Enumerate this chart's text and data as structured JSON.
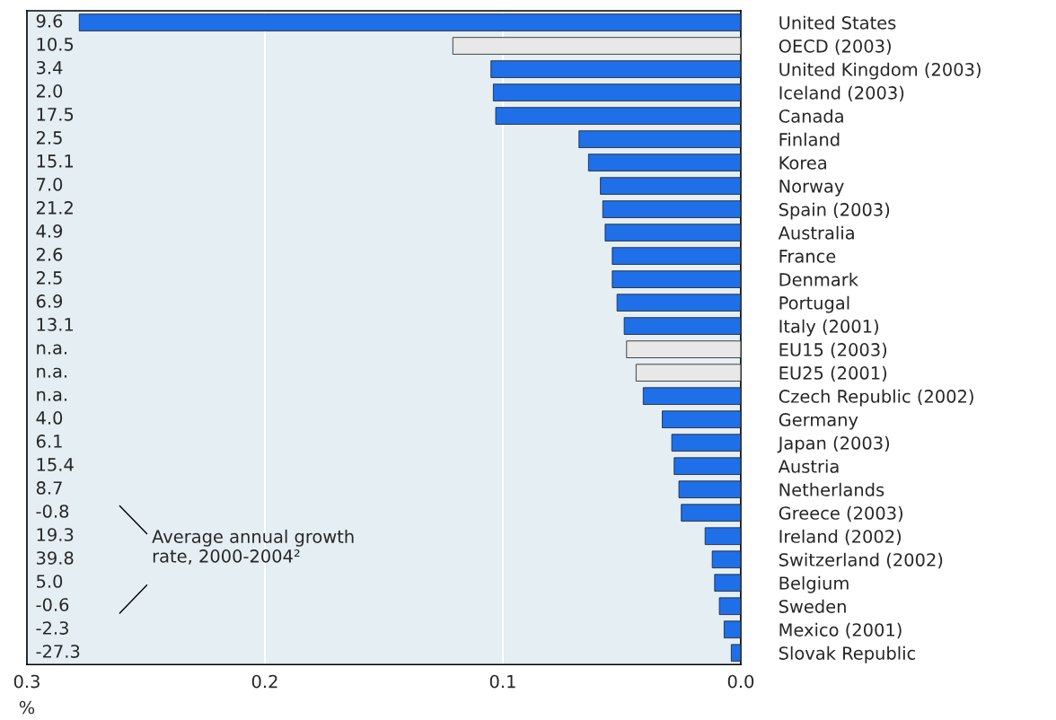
{
  "chart_data": {
    "type": "bar",
    "orientation": "horizontal",
    "xlabel": "%",
    "categories": [
      "United States",
      "OECD (2003)",
      "United Kingdom (2003)",
      "Iceland (2003)",
      "Canada",
      "Finland",
      "Korea",
      "Norway",
      "Spain (2003)",
      "Australia",
      "France",
      "Denmark",
      "Portugal",
      "Italy (2001)",
      "EU15 (2003)",
      "EU25 (2001)",
      "Czech Republic (2002)",
      "Germany",
      "Japan (2003)",
      "Austria",
      "Netherlands",
      "Greece (2003)",
      "Ireland (2002)",
      "Switzerland (2002)",
      "Belgium",
      "Sweden",
      "Mexico (2001)",
      "Slovak Republic"
    ],
    "values": [
      0.278,
      0.121,
      0.105,
      0.104,
      0.103,
      0.068,
      0.064,
      0.059,
      0.058,
      0.057,
      0.054,
      0.054,
      0.052,
      0.049,
      0.048,
      0.044,
      0.041,
      0.033,
      0.029,
      0.028,
      0.026,
      0.025,
      0.015,
      0.012,
      0.011,
      0.009,
      0.007,
      0.004
    ],
    "colors": [
      "#1f6fe8",
      "#e8e8e8",
      "#1f6fe8",
      "#1f6fe8",
      "#1f6fe8",
      "#1f6fe8",
      "#1f6fe8",
      "#1f6fe8",
      "#1f6fe8",
      "#1f6fe8",
      "#1f6fe8",
      "#1f6fe8",
      "#1f6fe8",
      "#1f6fe8",
      "#e8e8e8",
      "#e8e8e8",
      "#1f6fe8",
      "#1f6fe8",
      "#1f6fe8",
      "#1f6fe8",
      "#1f6fe8",
      "#1f6fe8",
      "#1f6fe8",
      "#1f6fe8",
      "#1f6fe8",
      "#1f6fe8",
      "#1f6fe8",
      "#1f6fe8"
    ],
    "xlim": [
      0.3,
      0.0
    ],
    "xticks": [
      0.3,
      0.2,
      0.1,
      {
        "value": 0,
        "label": "0.0"
      }
    ],
    "grid": "x",
    "annotations": [
      "9.6",
      "10.5",
      "3.4",
      "2.0",
      "17.5",
      "2.5",
      "15.1",
      "7.0",
      "21.2",
      "4.9",
      "2.6",
      "2.5",
      "6.9",
      "13.1",
      "n.a.",
      "n.a.",
      "n.a.",
      "4.0",
      "6.1",
      "15.4",
      "8.7",
      "-0.8",
      "19.3",
      "39.8",
      "5.0",
      "-0.6",
      "-2.3",
      "-27.3",
      "Average annual growth\nrate, 2000-2004²"
    ]
  }
}
